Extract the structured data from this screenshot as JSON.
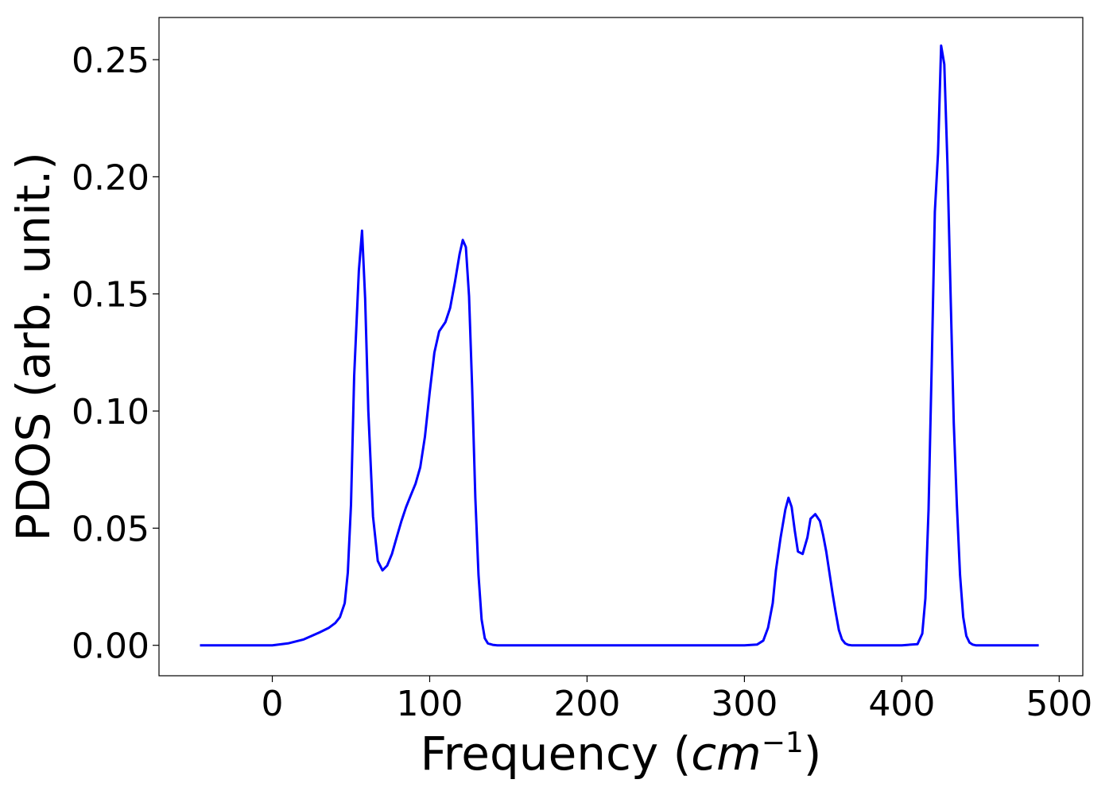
{
  "chart_data": {
    "type": "line",
    "title": "",
    "xlabel": {
      "prefix": "Frequency (",
      "math_base": "cm",
      "math_sup": "−1",
      "suffix": ")"
    },
    "ylabel": "PDOS (arb. unit.)",
    "xlim": [
      -72,
      515
    ],
    "ylim": [
      -0.013,
      0.268
    ],
    "grid": false,
    "legend": "none",
    "x_ticks": [
      {
        "value": 0,
        "label": "0"
      },
      {
        "value": 100,
        "label": "100"
      },
      {
        "value": 200,
        "label": "200"
      },
      {
        "value": 300,
        "label": "300"
      },
      {
        "value": 400,
        "label": "400"
      },
      {
        "value": 500,
        "label": "500"
      }
    ],
    "y_ticks": [
      {
        "value": 0.0,
        "label": "0.00"
      },
      {
        "value": 0.05,
        "label": "0.05"
      },
      {
        "value": 0.1,
        "label": "0.10"
      },
      {
        "value": 0.15,
        "label": "0.15"
      },
      {
        "value": 0.2,
        "label": "0.20"
      },
      {
        "value": 0.25,
        "label": "0.25"
      }
    ],
    "series": [
      {
        "color": "#0000ff",
        "x": [
          -46,
          -20,
          0,
          10,
          20,
          30,
          36,
          40,
          43,
          46,
          48,
          50,
          52,
          55,
          57,
          59,
          61,
          64,
          67,
          70,
          73,
          76,
          79,
          82,
          85,
          88,
          91,
          94,
          97,
          100,
          103,
          106,
          110,
          113,
          116,
          119,
          121,
          123,
          125,
          127,
          129,
          131,
          133,
          135,
          137,
          140,
          143,
          146,
          150,
          200,
          250,
          300,
          308,
          312,
          315,
          318,
          320,
          323,
          326,
          328,
          330,
          332,
          334,
          337,
          340,
          342,
          345,
          348,
          350,
          352,
          354,
          356,
          358,
          360,
          362,
          364,
          366,
          368,
          370,
          372,
          375,
          380,
          400,
          410,
          413,
          415,
          417,
          419,
          421,
          423,
          425,
          427,
          429,
          431,
          433,
          435,
          437,
          439,
          441,
          443,
          445,
          447,
          449,
          451,
          453,
          455,
          458,
          462,
          470,
          487
        ],
        "y": [
          0,
          0,
          0,
          0.0008,
          0.0025,
          0.0055,
          0.0075,
          0.0095,
          0.012,
          0.018,
          0.031,
          0.06,
          0.115,
          0.16,
          0.177,
          0.148,
          0.1,
          0.055,
          0.036,
          0.032,
          0.034,
          0.039,
          0.046,
          0.053,
          0.059,
          0.064,
          0.069,
          0.076,
          0.089,
          0.108,
          0.125,
          0.134,
          0.138,
          0.144,
          0.155,
          0.167,
          0.173,
          0.17,
          0.149,
          0.11,
          0.063,
          0.03,
          0.011,
          0.003,
          0.0008,
          0.0002,
          0,
          0,
          0,
          0,
          0,
          0,
          0.0003,
          0.002,
          0.0075,
          0.018,
          0.032,
          0.046,
          0.058,
          0.063,
          0.059,
          0.049,
          0.04,
          0.039,
          0.046,
          0.054,
          0.056,
          0.053,
          0.047,
          0.04,
          0.031,
          0.022,
          0.014,
          0.0065,
          0.0025,
          0.0008,
          0.0002,
          0,
          0,
          0,
          0,
          0,
          0,
          0.0005,
          0.005,
          0.02,
          0.058,
          0.12,
          0.185,
          0.21,
          0.256,
          0.248,
          0.205,
          0.15,
          0.095,
          0.06,
          0.03,
          0.012,
          0.004,
          0.0012,
          0.0003,
          0,
          0,
          0,
          0,
          0,
          0,
          0,
          0,
          0
        ]
      }
    ]
  }
}
